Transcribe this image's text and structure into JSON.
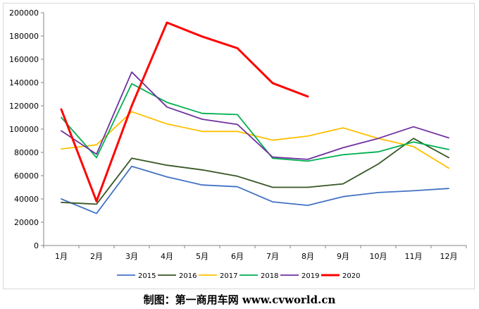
{
  "chart_data": {
    "type": "line",
    "categories": [
      "1月",
      "2月",
      "3月",
      "4月",
      "5月",
      "6月",
      "7月",
      "8月",
      "9月",
      "10月",
      "11月",
      "12月"
    ],
    "ylim": [
      0,
      200000
    ],
    "yticks": [
      "0",
      "20000",
      "40000",
      "60000",
      "80000",
      "100000",
      "120000",
      "140000",
      "160000",
      "180000",
      "200000"
    ],
    "grid": false,
    "legend_position": "bottom",
    "series": [
      {
        "name": "2015",
        "color": "#4472c4",
        "values": [
          40000,
          27500,
          68000,
          59000,
          52000,
          50500,
          37500,
          34500,
          42000,
          45500,
          47000,
          49000
        ]
      },
      {
        "name": "2016",
        "color": "#375623",
        "values": [
          37000,
          35500,
          75000,
          69000,
          65000,
          59500,
          50000,
          50000,
          53000,
          70000,
          92000,
          75500
        ]
      },
      {
        "name": "2017",
        "color": "#ffc000",
        "values": [
          83000,
          86500,
          115000,
          104500,
          98000,
          98000,
          90500,
          94000,
          101000,
          92000,
          85000,
          66500
        ]
      },
      {
        "name": "2018",
        "color": "#00b050",
        "values": [
          110000,
          75500,
          139000,
          123000,
          113500,
          112500,
          75000,
          72500,
          78000,
          80500,
          89000,
          82500
        ]
      },
      {
        "name": "2019",
        "color": "#7030a0",
        "values": [
          98500,
          78500,
          149000,
          119000,
          108500,
          104000,
          76000,
          74000,
          84000,
          92000,
          102000,
          92500
        ]
      },
      {
        "name": "2020",
        "color": "#ff0000",
        "values": [
          117000,
          38000,
          120000,
          191500,
          179500,
          169500,
          139500,
          128000,
          null,
          null,
          null,
          null
        ]
      }
    ]
  },
  "credit": "制图：第一商用车网 www.cvworld.cn"
}
